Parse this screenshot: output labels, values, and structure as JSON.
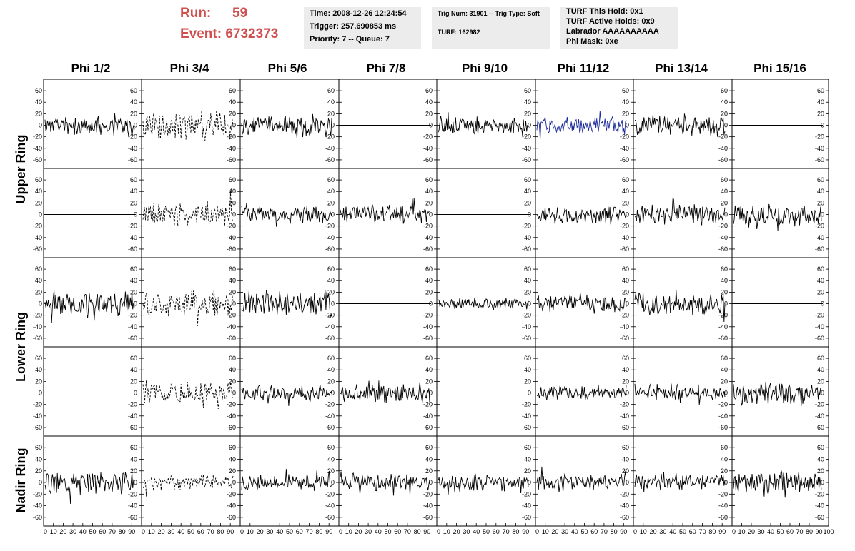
{
  "run": {
    "run_label": "Run:",
    "run_value": "59",
    "event_label": "Event:",
    "event_value": "6732373"
  },
  "header": {
    "time": "Time: 2008-12-26 12:24:54",
    "trigger": "Trigger: 257.690853 ms",
    "priority": "Priority: 7 -- Queue: 7",
    "trig": "Trig Num: 31901 -- Trig Type: Soft",
    "turf": "TURF: 162982",
    "hold": "TURF This Hold: 0x1",
    "active": "TURF Active Holds: 0x9",
    "labrador": "Labrador AAAAAAAAAA",
    "phimask": "Phi Mask: 0xe"
  },
  "columns": [
    "Phi 1/2",
    "Phi 3/4",
    "Phi 5/6",
    "Phi 7/8",
    "Phi 9/10",
    "Phi 11/12",
    "Phi 13/14",
    "Phi 15/16"
  ],
  "rows": [
    "Upper Ring",
    "Lower Ring",
    "Nadir Ring"
  ],
  "chart_data": {
    "type": "line",
    "title": "",
    "xlim": [
      0,
      100
    ],
    "ylim": [
      -70,
      75
    ],
    "y_ticks": [
      -60,
      -40,
      -20,
      0,
      20,
      40,
      60
    ],
    "x_tick_labels": [
      "0",
      "10",
      "20",
      "30",
      "40",
      "50",
      "60",
      "70",
      "80",
      "90",
      "100"
    ],
    "series_colors": {
      "normal": "#000000",
      "dashed": "#000000",
      "highlight": "#1a2a9a"
    },
    "panels": [
      {
        "row": 0,
        "col": 0,
        "style": "solid",
        "amplitude": 14,
        "seed": 11
      },
      {
        "row": 0,
        "col": 1,
        "style": "dashed",
        "amplitude": 20,
        "seed": 12
      },
      {
        "row": 0,
        "col": 2,
        "style": "solid",
        "amplitude": 14,
        "seed": 13
      },
      {
        "row": 0,
        "col": 3,
        "style": "flat",
        "amplitude": 0,
        "seed": 14
      },
      {
        "row": 0,
        "col": 4,
        "style": "solid",
        "amplitude": 13,
        "seed": 15
      },
      {
        "row": 0,
        "col": 5,
        "style": "highlight",
        "amplitude": 12,
        "seed": 16
      },
      {
        "row": 0,
        "col": 6,
        "style": "solid",
        "amplitude": 15,
        "seed": 17
      },
      {
        "row": 0,
        "col": 7,
        "style": "flat",
        "amplitude": 0,
        "seed": 18
      },
      {
        "row": 1,
        "col": 0,
        "style": "flat",
        "amplitude": 0,
        "seed": 21
      },
      {
        "row": 1,
        "col": 1,
        "style": "dashed",
        "amplitude": 17,
        "seed": 22
      },
      {
        "row": 1,
        "col": 2,
        "style": "solid",
        "amplitude": 13,
        "seed": 23
      },
      {
        "row": 1,
        "col": 3,
        "style": "solid",
        "amplitude": 13,
        "seed": 24
      },
      {
        "row": 1,
        "col": 4,
        "style": "flat",
        "amplitude": 0,
        "seed": 25
      },
      {
        "row": 1,
        "col": 5,
        "style": "solid",
        "amplitude": 12,
        "seed": 26
      },
      {
        "row": 1,
        "col": 6,
        "style": "solid",
        "amplitude": 13,
        "seed": 27
      },
      {
        "row": 1,
        "col": 7,
        "style": "solid",
        "amplitude": 16,
        "seed": 28
      },
      {
        "row": 2,
        "col": 0,
        "style": "solid",
        "amplitude": 15,
        "seed": 31
      },
      {
        "row": 2,
        "col": 1,
        "style": "dashed",
        "amplitude": 18,
        "seed": 32
      },
      {
        "row": 2,
        "col": 2,
        "style": "solid",
        "amplitude": 17,
        "seed": 33
      },
      {
        "row": 2,
        "col": 3,
        "style": "flat",
        "amplitude": 0,
        "seed": 34
      },
      {
        "row": 2,
        "col": 4,
        "style": "solid",
        "amplitude": 8,
        "seed": 35
      },
      {
        "row": 2,
        "col": 5,
        "style": "solid",
        "amplitude": 13,
        "seed": 36
      },
      {
        "row": 2,
        "col": 6,
        "style": "solid",
        "amplitude": 15,
        "seed": 37
      },
      {
        "row": 2,
        "col": 7,
        "style": "flat",
        "amplitude": 0,
        "seed": 38
      },
      {
        "row": 3,
        "col": 0,
        "style": "flat",
        "amplitude": 0,
        "seed": 41
      },
      {
        "row": 3,
        "col": 1,
        "style": "dashed",
        "amplitude": 16,
        "seed": 42
      },
      {
        "row": 3,
        "col": 2,
        "style": "solid",
        "amplitude": 10,
        "seed": 43
      },
      {
        "row": 3,
        "col": 3,
        "style": "solid",
        "amplitude": 13,
        "seed": 44
      },
      {
        "row": 3,
        "col": 4,
        "style": "flat",
        "amplitude": 0,
        "seed": 45
      },
      {
        "row": 3,
        "col": 5,
        "style": "solid",
        "amplitude": 10,
        "seed": 46
      },
      {
        "row": 3,
        "col": 6,
        "style": "solid",
        "amplitude": 11,
        "seed": 47
      },
      {
        "row": 3,
        "col": 7,
        "style": "solid",
        "amplitude": 18,
        "seed": 48
      },
      {
        "row": 4,
        "col": 0,
        "style": "solid",
        "amplitude": 16,
        "seed": 51
      },
      {
        "row": 4,
        "col": 1,
        "style": "dashed",
        "amplitude": 10,
        "seed": 52
      },
      {
        "row": 4,
        "col": 2,
        "style": "solid",
        "amplitude": 11,
        "seed": 53
      },
      {
        "row": 4,
        "col": 3,
        "style": "solid",
        "amplitude": 12,
        "seed": 54
      },
      {
        "row": 4,
        "col": 4,
        "style": "solid",
        "amplitude": 11,
        "seed": 55
      },
      {
        "row": 4,
        "col": 5,
        "style": "solid",
        "amplitude": 11,
        "seed": 56
      },
      {
        "row": 4,
        "col": 6,
        "style": "solid",
        "amplitude": 11,
        "seed": 57
      },
      {
        "row": 4,
        "col": 7,
        "style": "solid",
        "amplitude": 14,
        "seed": 58
      }
    ]
  }
}
